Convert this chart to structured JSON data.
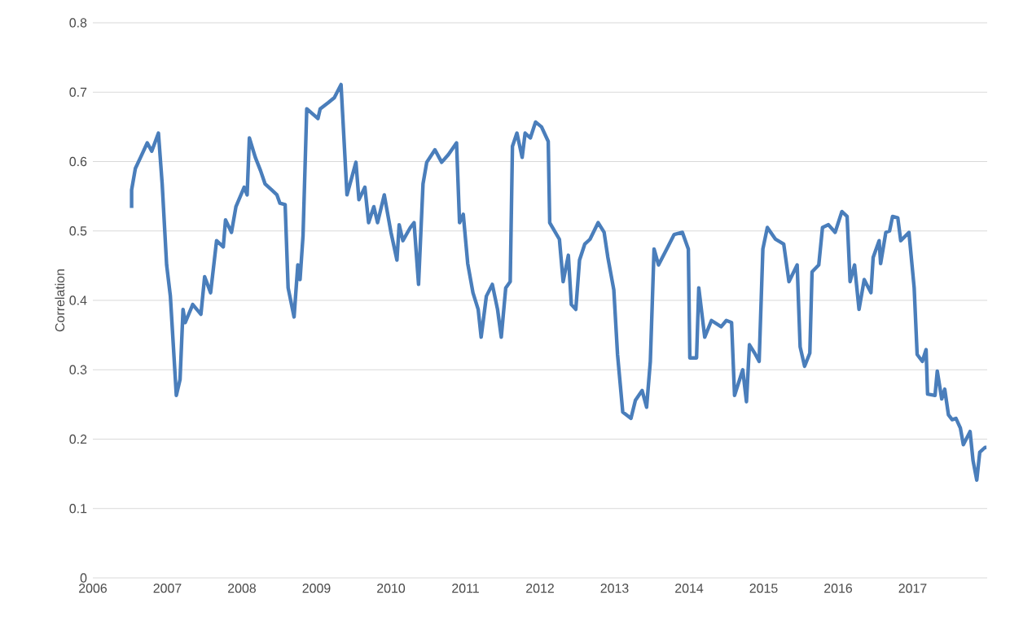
{
  "chart_data": {
    "type": "line",
    "ylabel": "Correlation",
    "color": "#4a7ebb",
    "xlim": [
      2006,
      2018
    ],
    "xticks": [
      2006,
      2007,
      2008,
      2009,
      2010,
      2011,
      2012,
      2013,
      2014,
      2015,
      2016,
      2017
    ],
    "ylim": [
      0,
      0.8
    ],
    "yticks": [
      0,
      0.1,
      0.2,
      0.3,
      0.4,
      0.5,
      0.6,
      0.7,
      0.8
    ],
    "grid": "y",
    "marker": "none",
    "line_style": "solid",
    "x": [
      2006.52,
      2006.52,
      2006.57,
      2006.64,
      2006.73,
      2006.79,
      2006.88,
      2006.93,
      2006.99,
      2007.04,
      2007.12,
      2007.17,
      2007.21,
      2007.24,
      2007.34,
      2007.45,
      2007.5,
      2007.58,
      2007.66,
      2007.75,
      2007.78,
      2007.86,
      2007.92,
      2008.03,
      2008.07,
      2008.1,
      2008.18,
      2008.25,
      2008.31,
      2008.4,
      2008.47,
      2008.51,
      2008.58,
      2008.62,
      2008.7,
      2008.75,
      2008.78,
      2008.82,
      2008.87,
      2009.02,
      2009.05,
      2009.16,
      2009.24,
      2009.33,
      2009.41,
      2009.53,
      2009.57,
      2009.65,
      2009.7,
      2009.77,
      2009.82,
      2009.91,
      2010.0,
      2010.08,
      2010.11,
      2010.16,
      2010.26,
      2010.31,
      2010.37,
      2010.43,
      2010.48,
      2010.59,
      2010.68,
      2010.77,
      2010.88,
      2010.92,
      2010.97,
      2011.03,
      2011.1,
      2011.17,
      2011.21,
      2011.28,
      2011.36,
      2011.43,
      2011.48,
      2011.54,
      2011.6,
      2011.63,
      2011.69,
      2011.76,
      2011.8,
      2011.87,
      2011.94,
      2012.02,
      2012.11,
      2012.13,
      2012.26,
      2012.31,
      2012.38,
      2012.42,
      2012.48,
      2012.53,
      2012.6,
      2012.67,
      2012.78,
      2012.86,
      2012.91,
      2012.99,
      2013.04,
      2013.11,
      2013.22,
      2013.28,
      2013.37,
      2013.43,
      2013.48,
      2013.53,
      2013.59,
      2013.7,
      2013.8,
      2013.91,
      2013.99,
      2014.01,
      2014.1,
      2014.13,
      2014.21,
      2014.3,
      2014.43,
      2014.5,
      2014.57,
      2014.61,
      2014.72,
      2014.77,
      2014.81,
      2014.88,
      2014.94,
      2014.99,
      2015.05,
      2015.16,
      2015.27,
      2015.34,
      2015.45,
      2015.49,
      2015.55,
      2015.62,
      2015.65,
      2015.74,
      2015.79,
      2015.87,
      2015.96,
      2016.05,
      2016.12,
      2016.16,
      2016.22,
      2016.28,
      2016.35,
      2016.44,
      2016.47,
      2016.55,
      2016.57,
      2016.64,
      2016.69,
      2016.73,
      2016.8,
      2016.84,
      2016.95,
      2017.02,
      2017.06,
      2017.13,
      2017.18,
      2017.2,
      2017.3,
      2017.33,
      2017.39,
      2017.43,
      2017.48,
      2017.53,
      2017.58,
      2017.64,
      2017.68,
      2017.77,
      2017.81,
      2017.86,
      2017.9,
      2017.97,
      2017.99
    ],
    "values": [
      0.533,
      0.559,
      0.59,
      0.606,
      0.627,
      0.615,
      0.641,
      0.568,
      0.451,
      0.406,
      0.263,
      0.286,
      0.387,
      0.368,
      0.394,
      0.38,
      0.434,
      0.411,
      0.486,
      0.477,
      0.516,
      0.498,
      0.535,
      0.563,
      0.552,
      0.634,
      0.606,
      0.587,
      0.568,
      0.559,
      0.552,
      0.54,
      0.538,
      0.418,
      0.376,
      0.451,
      0.43,
      0.493,
      0.676,
      0.662,
      0.676,
      0.685,
      0.692,
      0.711,
      0.552,
      0.599,
      0.545,
      0.563,
      0.512,
      0.535,
      0.512,
      0.552,
      0.498,
      0.458,
      0.509,
      0.486,
      0.505,
      0.512,
      0.423,
      0.568,
      0.599,
      0.617,
      0.599,
      0.61,
      0.627,
      0.512,
      0.524,
      0.453,
      0.411,
      0.387,
      0.347,
      0.406,
      0.423,
      0.387,
      0.347,
      0.418,
      0.427,
      0.622,
      0.641,
      0.606,
      0.641,
      0.634,
      0.657,
      0.65,
      0.629,
      0.512,
      0.488,
      0.427,
      0.465,
      0.394,
      0.387,
      0.458,
      0.481,
      0.488,
      0.512,
      0.498,
      0.462,
      0.415,
      0.322,
      0.239,
      0.23,
      0.256,
      0.27,
      0.246,
      0.312,
      0.474,
      0.451,
      0.474,
      0.495,
      0.498,
      0.474,
      0.317,
      0.317,
      0.418,
      0.347,
      0.371,
      0.362,
      0.371,
      0.368,
      0.263,
      0.3,
      0.254,
      0.336,
      0.324,
      0.312,
      0.474,
      0.505,
      0.488,
      0.481,
      0.427,
      0.451,
      0.333,
      0.305,
      0.324,
      0.441,
      0.451,
      0.505,
      0.509,
      0.498,
      0.528,
      0.521,
      0.427,
      0.451,
      0.387,
      0.43,
      0.411,
      0.462,
      0.486,
      0.453,
      0.498,
      0.5,
      0.521,
      0.519,
      0.486,
      0.498,
      0.418,
      0.322,
      0.312,
      0.329,
      0.265,
      0.263,
      0.298,
      0.258,
      0.272,
      0.235,
      0.228,
      0.23,
      0.216,
      0.192,
      0.211,
      0.169,
      0.141,
      0.181,
      0.188,
      0.188
    ]
  }
}
